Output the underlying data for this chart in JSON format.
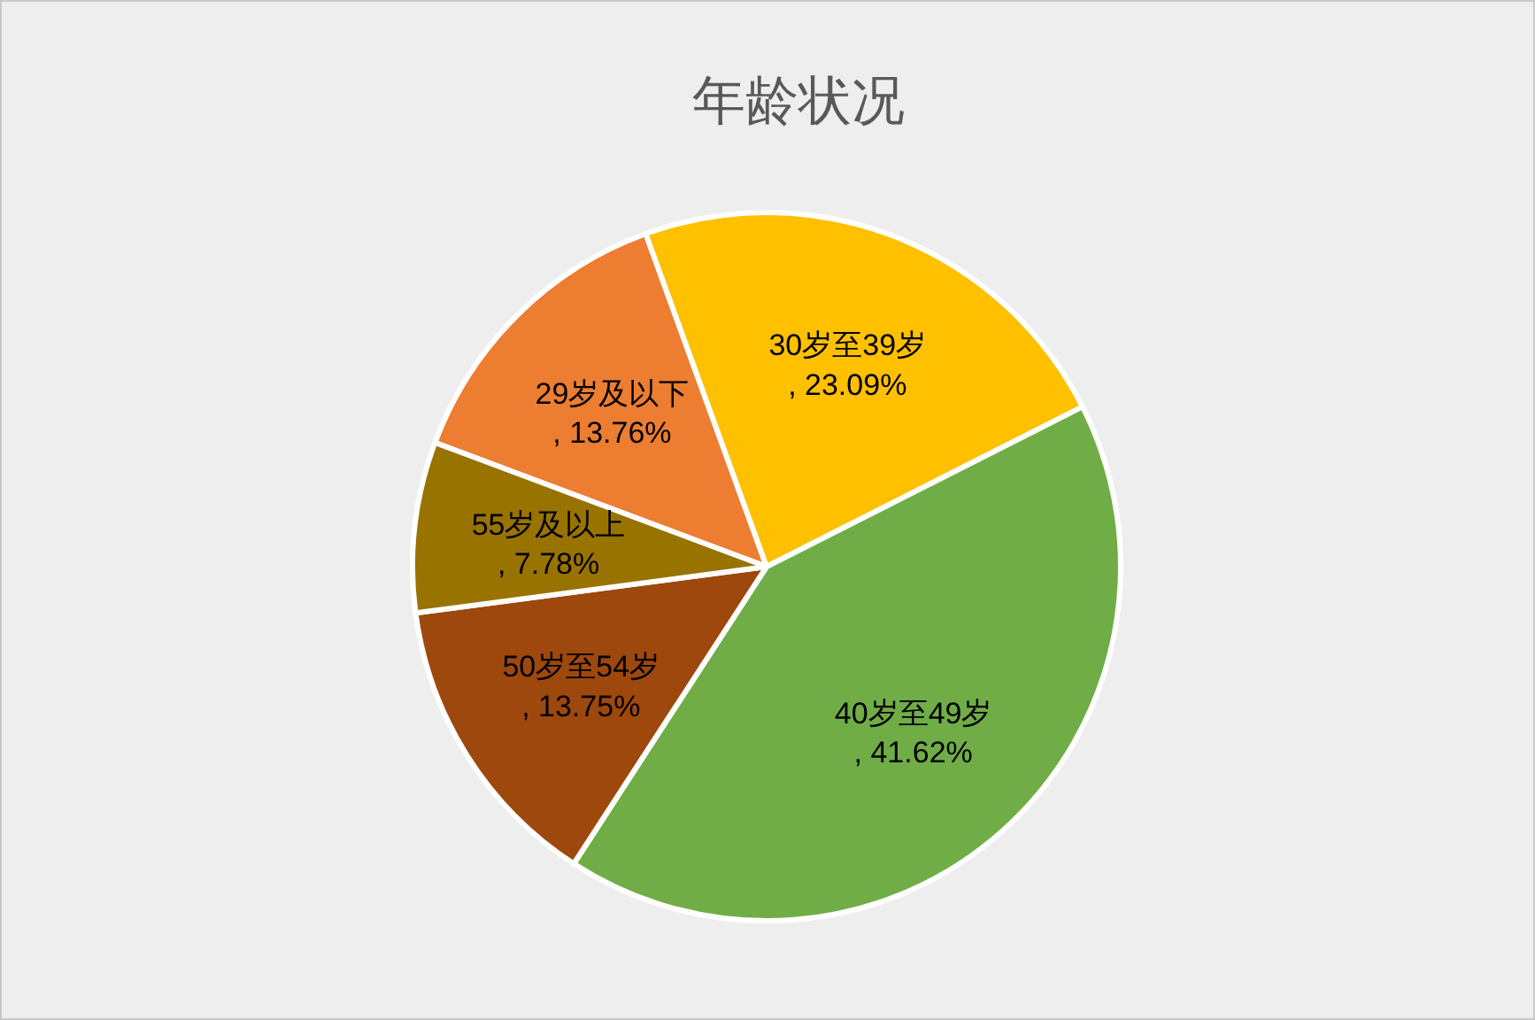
{
  "chart_data": {
    "type": "pie",
    "title": "年龄状况",
    "categories": [
      "29岁及以下",
      "30岁至39岁",
      "40岁至49岁",
      "50岁至54岁",
      "55岁及以上"
    ],
    "values": [
      13.76,
      23.09,
      41.62,
      13.75,
      7.78
    ],
    "colors": [
      "#ed7d31",
      "#ffc000",
      "#70ad47",
      "#9e480e",
      "#997300"
    ],
    "value_labels": [
      ", 13.76%",
      ", 23.09%",
      ", 41.62%",
      ", 13.75%",
      ", 7.78%"
    ]
  }
}
